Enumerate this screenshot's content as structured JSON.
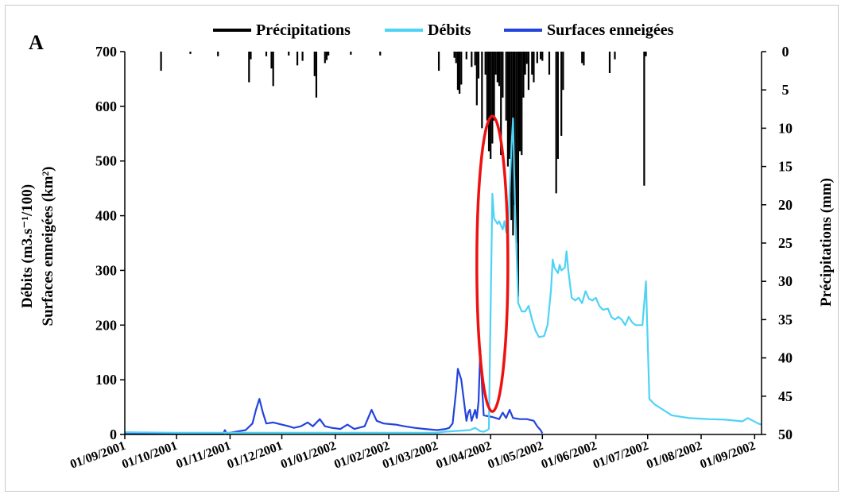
{
  "chart_data": {
    "type": "line",
    "panel_label": "A",
    "left_axis": {
      "label_line1": "Débits (m3.s⁻¹/100)",
      "label_line2": "Surfaces enneigées (km²)",
      "ylim": [
        0,
        700
      ],
      "ticks": [
        0,
        100,
        200,
        300,
        400,
        500,
        600,
        700
      ]
    },
    "right_axis": {
      "label": "Précipitations (mm)",
      "ylim": [
        0,
        50
      ],
      "inverted": true,
      "ticks": [
        0,
        5,
        10,
        15,
        20,
        25,
        30,
        35,
        40,
        45,
        50
      ]
    },
    "x_axis": {
      "start": "2001-09-01",
      "end": "2002-09-05",
      "tick_labels": [
        "01/09/2001",
        "01/10/2001",
        "01/11/2001",
        "01/12/2001",
        "01/01/2002",
        "01/02/2002",
        "01/03/2002",
        "01/04/2002",
        "01/05/2002",
        "01/06/2002",
        "01/07/2002",
        "01/08/2002",
        "01/09/2002"
      ],
      "tick_dates": [
        "2001-09-01",
        "2001-10-01",
        "2001-11-01",
        "2001-12-01",
        "2002-01-01",
        "2002-02-01",
        "2002-03-01",
        "2002-04-01",
        "2002-05-01",
        "2002-06-01",
        "2002-07-01",
        "2002-08-01",
        "2002-09-01"
      ]
    },
    "legend_position": "top",
    "colors": {
      "precipitations": "#000000",
      "debits": "#4ed3f5",
      "surfaces": "#2244dd",
      "highlight": "#ee1111"
    },
    "series": [
      {
        "name": "Précipitations",
        "axis": "right",
        "style": "bars",
        "points": [
          [
            "2001-09-22",
            2.5
          ],
          [
            "2001-10-09",
            0.3
          ],
          [
            "2001-10-25",
            0.6
          ],
          [
            "2001-11-12",
            4
          ],
          [
            "2001-11-13",
            1
          ],
          [
            "2001-11-22",
            0.6
          ],
          [
            "2001-11-25",
            2.2
          ],
          [
            "2001-11-26",
            4.5
          ],
          [
            "2001-12-05",
            0.5
          ],
          [
            "2001-12-10",
            1.8
          ],
          [
            "2001-12-13",
            1.2
          ],
          [
            "2001-12-20",
            3.2
          ],
          [
            "2001-12-21",
            6
          ],
          [
            "2001-12-26",
            1.5
          ],
          [
            "2001-12-27",
            1.1
          ],
          [
            "2001-12-28",
            0.5
          ],
          [
            "2002-01-10",
            0.4
          ],
          [
            "2002-01-27",
            0.5
          ],
          [
            "2002-03-02",
            2.5
          ],
          [
            "2002-03-11",
            0.8
          ],
          [
            "2002-03-12",
            1.5
          ],
          [
            "2002-03-13",
            5
          ],
          [
            "2002-03-14",
            5.5
          ],
          [
            "2002-03-15",
            4.3
          ],
          [
            "2002-03-18",
            1
          ],
          [
            "2002-03-21",
            2
          ],
          [
            "2002-03-23",
            1.8
          ],
          [
            "2002-03-24",
            7
          ],
          [
            "2002-03-25",
            3.5
          ],
          [
            "2002-03-27",
            10
          ],
          [
            "2002-03-29",
            3
          ],
          [
            "2002-03-30",
            9
          ],
          [
            "2002-03-31",
            13
          ],
          [
            "2002-04-01",
            14
          ],
          [
            "2002-04-02",
            12
          ],
          [
            "2002-04-03",
            9
          ],
          [
            "2002-04-04",
            3
          ],
          [
            "2002-04-05",
            4
          ],
          [
            "2002-04-06",
            4.5
          ],
          [
            "2002-04-07",
            13.5
          ],
          [
            "2002-04-08",
            6
          ],
          [
            "2002-04-10",
            9
          ],
          [
            "2002-04-11",
            15
          ],
          [
            "2002-04-12",
            14
          ],
          [
            "2002-04-13",
            22
          ],
          [
            "2002-04-14",
            24
          ],
          [
            "2002-04-15",
            20
          ],
          [
            "2002-04-16",
            25
          ],
          [
            "2002-04-17",
            32
          ],
          [
            "2002-04-18",
            13
          ],
          [
            "2002-04-19",
            13.5
          ],
          [
            "2002-04-20",
            6
          ],
          [
            "2002-04-21",
            3
          ],
          [
            "2002-04-22",
            1.6
          ],
          [
            "2002-04-23",
            5
          ],
          [
            "2002-04-25",
            3
          ],
          [
            "2002-04-26",
            4
          ],
          [
            "2002-04-28",
            1.5
          ],
          [
            "2002-04-30",
            1
          ],
          [
            "2002-05-01",
            1.2
          ],
          [
            "2002-05-05",
            3
          ],
          [
            "2002-05-09",
            18.5
          ],
          [
            "2002-05-10",
            14
          ],
          [
            "2002-05-12",
            11
          ],
          [
            "2002-05-13",
            5
          ],
          [
            "2002-05-24",
            1.5
          ],
          [
            "2002-05-25",
            1.8
          ],
          [
            "2002-06-09",
            2.8
          ],
          [
            "2002-06-12",
            1
          ],
          [
            "2002-06-29",
            17.5
          ],
          [
            "2002-06-30",
            0.6
          ]
        ]
      },
      {
        "name": "Débits",
        "axis": "left",
        "style": "line",
        "points": [
          [
            "2001-09-01",
            4
          ],
          [
            "2001-10-01",
            3
          ],
          [
            "2001-11-01",
            3
          ],
          [
            "2001-12-01",
            3
          ],
          [
            "2002-01-01",
            3
          ],
          [
            "2002-02-01",
            3
          ],
          [
            "2002-03-01",
            3
          ],
          [
            "2002-03-05",
            5
          ],
          [
            "2002-03-20",
            8
          ],
          [
            "2002-03-23",
            12
          ],
          [
            "2002-03-26",
            6
          ],
          [
            "2002-03-28",
            5
          ],
          [
            "2002-03-30",
            8
          ],
          [
            "2002-03-31",
            10
          ],
          [
            "2002-04-01",
            230
          ],
          [
            "2002-04-02",
            440
          ],
          [
            "2002-04-03",
            395
          ],
          [
            "2002-04-05",
            385
          ],
          [
            "2002-04-06",
            390
          ],
          [
            "2002-04-08",
            375
          ],
          [
            "2002-04-09",
            390
          ],
          [
            "2002-04-10",
            370
          ],
          [
            "2002-04-11",
            365
          ],
          [
            "2002-04-13",
            520
          ],
          [
            "2002-04-14",
            578
          ],
          [
            "2002-04-15",
            430
          ],
          [
            "2002-04-17",
            240
          ],
          [
            "2002-04-19",
            225
          ],
          [
            "2002-04-21",
            225
          ],
          [
            "2002-04-23",
            235
          ],
          [
            "2002-04-25",
            210
          ],
          [
            "2002-04-27",
            190
          ],
          [
            "2002-04-29",
            178
          ],
          [
            "2002-05-02",
            180
          ],
          [
            "2002-05-04",
            200
          ],
          [
            "2002-05-06",
            265
          ],
          [
            "2002-05-07",
            320
          ],
          [
            "2002-05-08",
            305
          ],
          [
            "2002-05-10",
            295
          ],
          [
            "2002-05-11",
            310
          ],
          [
            "2002-05-12",
            300
          ],
          [
            "2002-05-14",
            305
          ],
          [
            "2002-05-15",
            335
          ],
          [
            "2002-05-16",
            300
          ],
          [
            "2002-05-18",
            250
          ],
          [
            "2002-05-20",
            245
          ],
          [
            "2002-05-22",
            250
          ],
          [
            "2002-05-24",
            240
          ],
          [
            "2002-05-26",
            262
          ],
          [
            "2002-05-28",
            248
          ],
          [
            "2002-05-30",
            245
          ],
          [
            "2002-06-01",
            250
          ],
          [
            "2002-06-03",
            235
          ],
          [
            "2002-06-05",
            228
          ],
          [
            "2002-06-08",
            230
          ],
          [
            "2002-06-10",
            215
          ],
          [
            "2002-06-12",
            210
          ],
          [
            "2002-06-14",
            215
          ],
          [
            "2002-06-16",
            210
          ],
          [
            "2002-06-18",
            200
          ],
          [
            "2002-06-20",
            215
          ],
          [
            "2002-06-22",
            205
          ],
          [
            "2002-06-24",
            200
          ],
          [
            "2002-06-28",
            200
          ],
          [
            "2002-06-30",
            280
          ],
          [
            "2002-07-02",
            65
          ],
          [
            "2002-07-05",
            55
          ],
          [
            "2002-07-10",
            45
          ],
          [
            "2002-07-15",
            35
          ],
          [
            "2002-07-25",
            30
          ],
          [
            "2002-08-05",
            28
          ],
          [
            "2002-08-15",
            27
          ],
          [
            "2002-08-25",
            24
          ],
          [
            "2002-08-28",
            30
          ],
          [
            "2002-09-03",
            20
          ],
          [
            "2002-09-05",
            18
          ]
        ]
      },
      {
        "name": "Surfaces enneigées",
        "axis": "left",
        "style": "line",
        "points": [
          [
            "2001-09-01",
            1
          ],
          [
            "2001-10-01",
            1
          ],
          [
            "2001-10-28",
            1
          ],
          [
            "2001-10-29",
            8
          ],
          [
            "2001-10-30",
            2
          ],
          [
            "2001-11-10",
            8
          ],
          [
            "2001-11-14",
            20
          ],
          [
            "2001-11-16",
            45
          ],
          [
            "2001-11-18",
            65
          ],
          [
            "2001-11-20",
            40
          ],
          [
            "2001-11-22",
            20
          ],
          [
            "2001-11-26",
            22
          ],
          [
            "2001-12-01",
            18
          ],
          [
            "2001-12-05",
            15
          ],
          [
            "2001-12-08",
            12
          ],
          [
            "2001-12-12",
            15
          ],
          [
            "2001-12-16",
            22
          ],
          [
            "2001-12-19",
            15
          ],
          [
            "2001-12-23",
            28
          ],
          [
            "2001-12-26",
            15
          ],
          [
            "2001-12-30",
            12
          ],
          [
            "2002-01-04",
            10
          ],
          [
            "2002-01-08",
            18
          ],
          [
            "2002-01-12",
            10
          ],
          [
            "2002-01-18",
            15
          ],
          [
            "2002-01-20",
            30
          ],
          [
            "2002-01-22",
            45
          ],
          [
            "2002-01-25",
            25
          ],
          [
            "2002-01-29",
            20
          ],
          [
            "2002-02-05",
            18
          ],
          [
            "2002-02-10",
            15
          ],
          [
            "2002-02-16",
            12
          ],
          [
            "2002-02-22",
            10
          ],
          [
            "2002-03-01",
            8
          ],
          [
            "2002-03-06",
            10
          ],
          [
            "2002-03-08",
            12
          ],
          [
            "2002-03-10",
            20
          ],
          [
            "2002-03-12",
            80
          ],
          [
            "2002-03-13",
            120
          ],
          [
            "2002-03-15",
            100
          ],
          [
            "2002-03-17",
            50
          ],
          [
            "2002-03-18",
            25
          ],
          [
            "2002-03-19",
            40
          ],
          [
            "2002-03-20",
            45
          ],
          [
            "2002-03-21",
            25
          ],
          [
            "2002-03-22",
            35
          ],
          [
            "2002-03-23",
            45
          ],
          [
            "2002-03-24",
            30
          ],
          [
            "2002-03-25",
            60
          ],
          [
            "2002-03-26",
            155
          ],
          [
            "2002-03-27",
            90
          ],
          [
            "2002-03-28",
            35
          ],
          [
            "2002-04-02",
            32
          ],
          [
            "2002-04-04",
            30
          ],
          [
            "2002-04-06",
            28
          ],
          [
            "2002-04-08",
            40
          ],
          [
            "2002-04-10",
            30
          ],
          [
            "2002-04-12",
            45
          ],
          [
            "2002-04-14",
            30
          ],
          [
            "2002-04-18",
            28
          ],
          [
            "2002-04-22",
            28
          ],
          [
            "2002-04-26",
            25
          ],
          [
            "2002-04-28",
            15
          ],
          [
            "2002-04-30",
            8
          ],
          [
            "2002-05-01",
            2
          ]
        ]
      }
    ],
    "annotations": [
      {
        "type": "ellipse",
        "center_date": "2002-04-02",
        "center_value": 312,
        "x_radius_days": 9,
        "y_radius_value": 270
      }
    ]
  }
}
